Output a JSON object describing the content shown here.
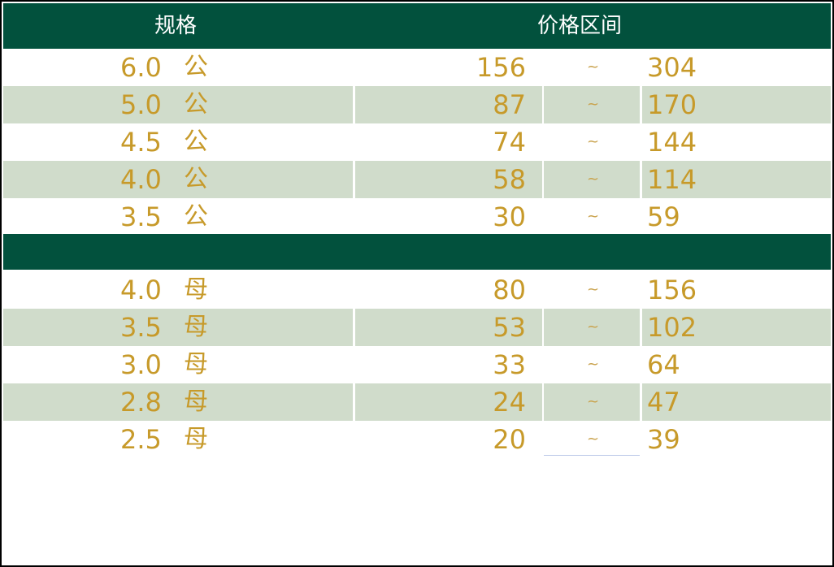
{
  "header": {
    "spec_label": "规格",
    "price_label": "价格区间"
  },
  "colors": {
    "header_bg": "#02513d",
    "stripe_bg": "#d0dccb",
    "value_text": "#c79a2a"
  },
  "male_rows": [
    {
      "spec": "6.0",
      "sex": "公",
      "min": "156",
      "sep": "~",
      "max": "304",
      "striped": false
    },
    {
      "spec": "5.0",
      "sex": "公",
      "min": "87",
      "sep": "~",
      "max": "170",
      "striped": true
    },
    {
      "spec": "4.5",
      "sex": "公",
      "min": "74",
      "sep": "~",
      "max": "144",
      "striped": false
    },
    {
      "spec": "4.0",
      "sex": "公",
      "min": "58",
      "sep": "~",
      "max": "114",
      "striped": true
    },
    {
      "spec": "3.5",
      "sex": "公",
      "min": "30",
      "sep": "~",
      "max": "59",
      "striped": false
    }
  ],
  "female_rows": [
    {
      "spec": "4.0",
      "sex": "母",
      "min": "80",
      "sep": "~",
      "max": "156",
      "striped": false
    },
    {
      "spec": "3.5",
      "sex": "母",
      "min": "53",
      "sep": "~",
      "max": "102",
      "striped": true
    },
    {
      "spec": "3.0",
      "sex": "母",
      "min": "33",
      "sep": "~",
      "max": "64",
      "striped": false
    },
    {
      "spec": "2.8",
      "sex": "母",
      "min": "24",
      "sep": "~",
      "max": "47",
      "striped": true
    },
    {
      "spec": "2.5",
      "sex": "母",
      "min": "20",
      "sep": "~",
      "max": "39",
      "striped": false
    }
  ]
}
